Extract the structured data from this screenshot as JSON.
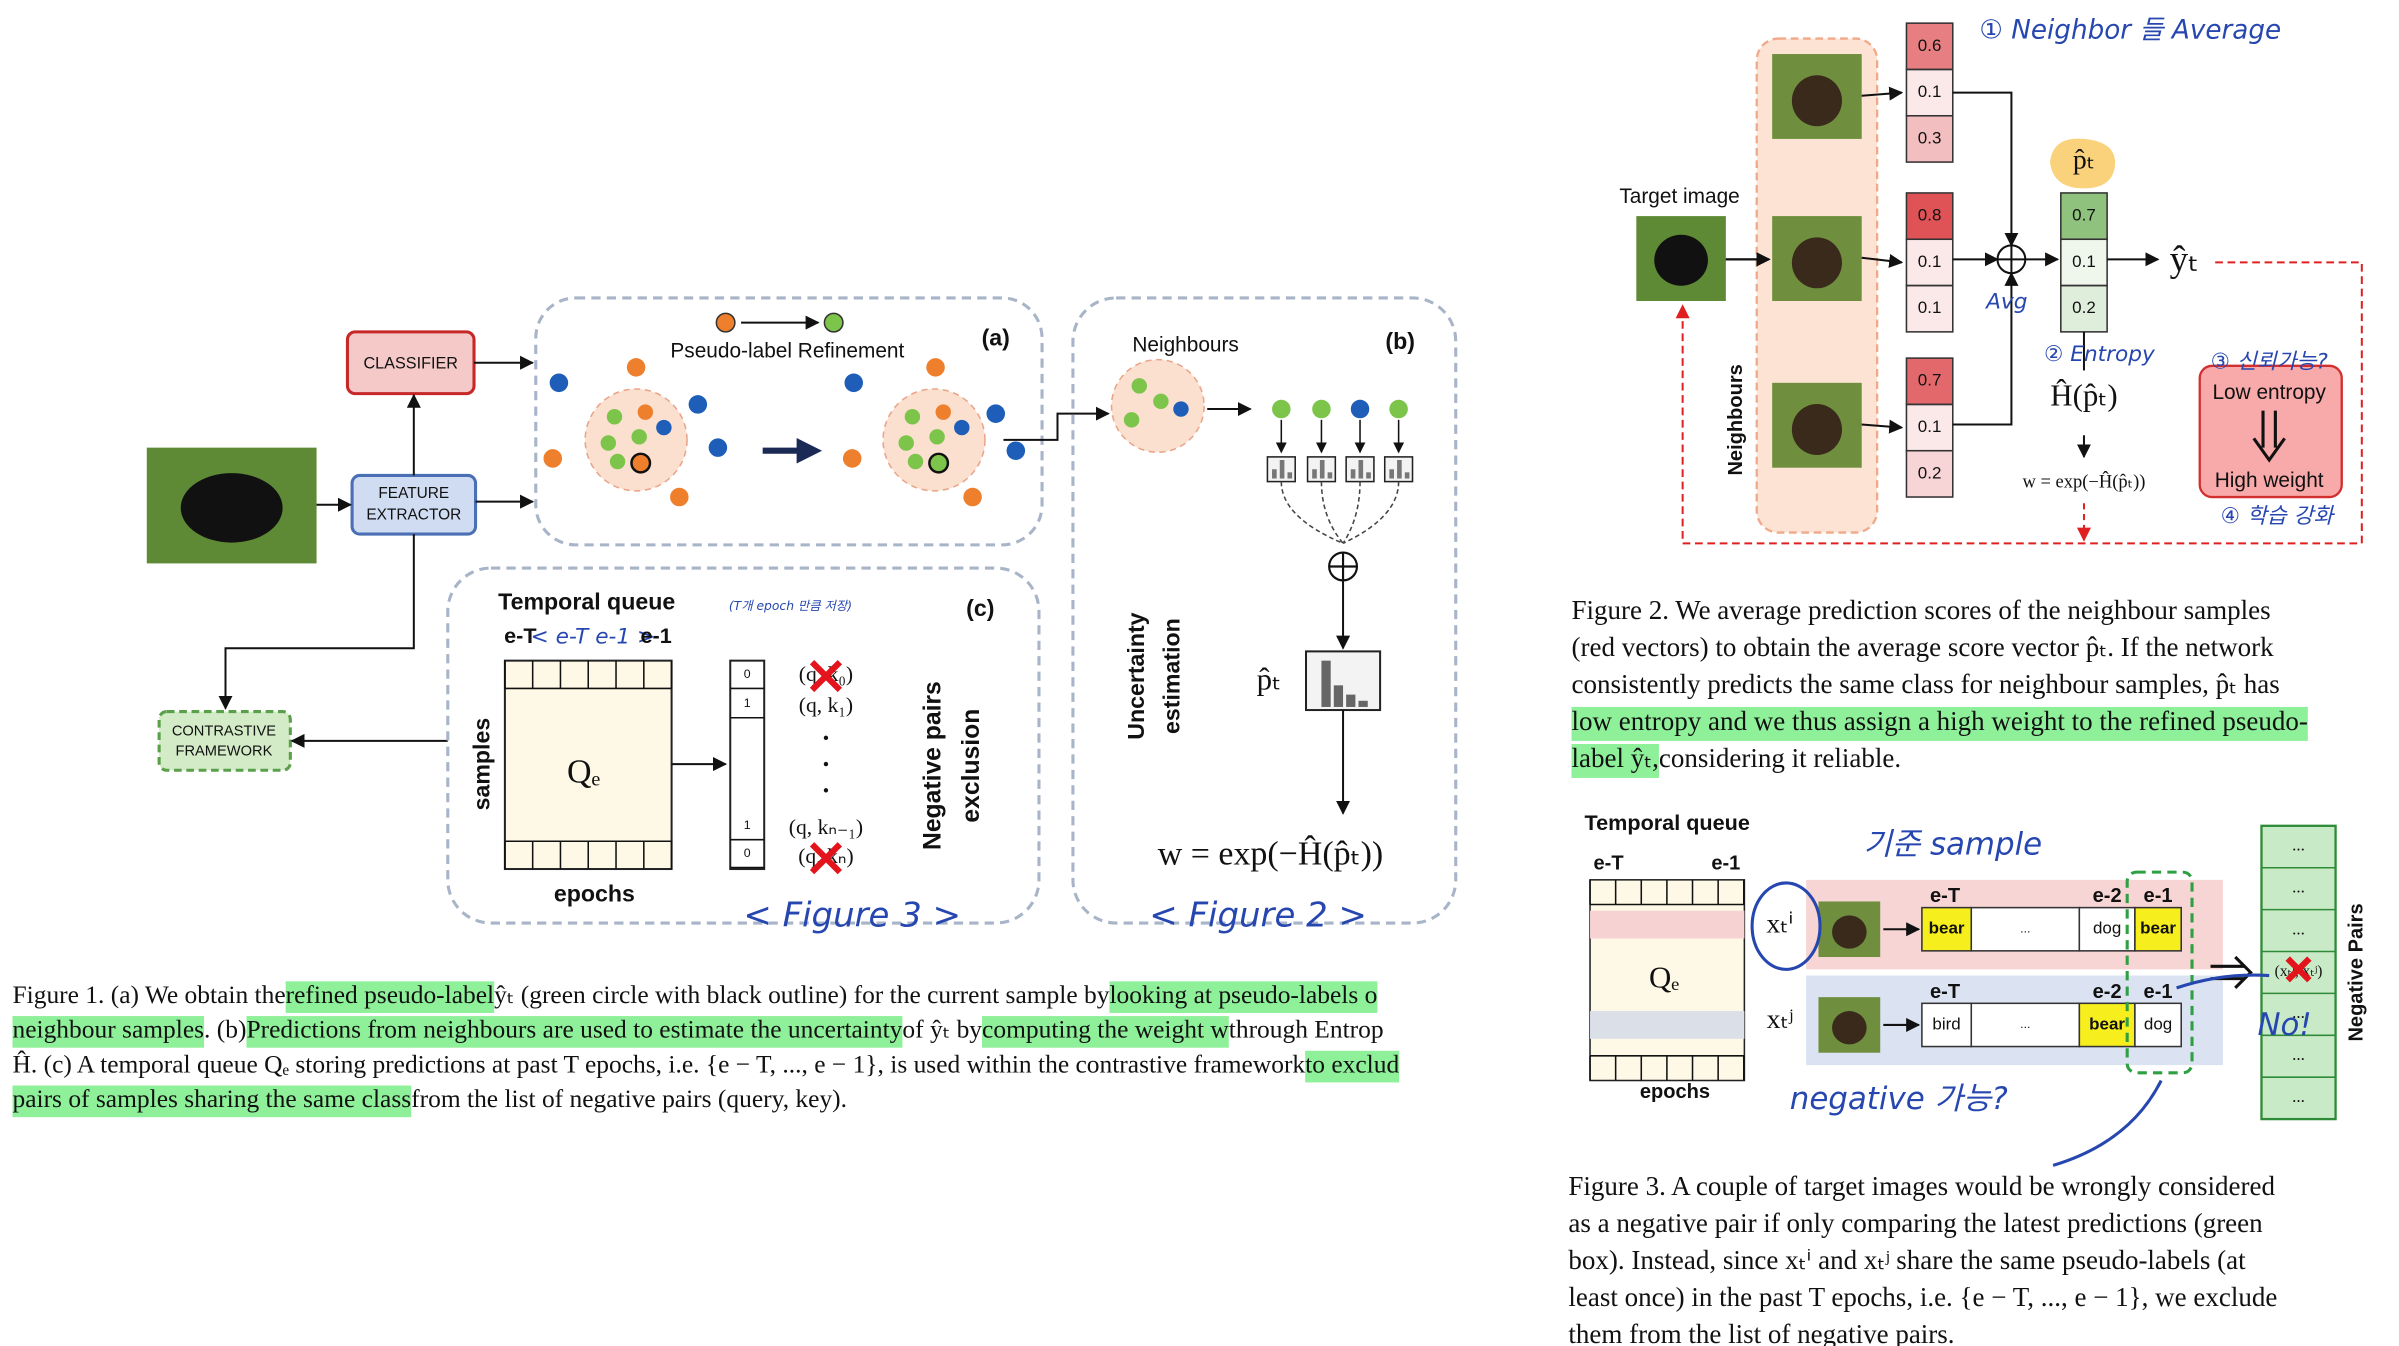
{
  "figure1": {
    "classifier": "CLASSIFIER",
    "feature_extractor": [
      "FEATURE",
      "EXTRACTOR"
    ],
    "contrastive": [
      "CONTRASTIVE",
      "FRAMEWORK"
    ],
    "panel_a": {
      "label": "(a)",
      "title": "Pseudo-label Refinement"
    },
    "panel_b": {
      "label": "(b)",
      "neighbours": "Neighbours",
      "uncertainty": [
        "Uncertainty",
        "estimation"
      ],
      "p_hat": "p̂ₜ",
      "formula": "w = exp(−Ĥ(p̂ₜ))"
    },
    "panel_c": {
      "label": "(c)",
      "title": "Temporal queue",
      "e_T": "e-T",
      "e_1": "e-1",
      "samples": "samples",
      "epochs": "epochs",
      "queue": "Qₑ",
      "vector": [
        0,
        1,
        1,
        0
      ],
      "pairs": [
        "(q, k₀)",
        "(q, k₁)",
        "(q, kₙ₋₁)",
        "(q, kₙ)"
      ],
      "exclusion": [
        "Negative pairs",
        "exclusion"
      ]
    },
    "annotations": {
      "epoch_note": "(T개 epoch 만큼 저장)",
      "range": "< e-T      e-1 >",
      "fig3": "< Figure 3 >",
      "fig2": "< Figure 2 >"
    },
    "caption": [
      [
        "Figure 1. (a) We obtain the ",
        {
          "text": "refined pseudo-label",
          "highlight": true
        },
        " ŷₜ (green circle with black outline) for the current sample by ",
        {
          "text": "looking at pseudo-labels o",
          "highlight": true
        }
      ],
      [
        {
          "text": "neighbour samples",
          "highlight": true
        },
        ". (b) ",
        {
          "text": "Predictions from neighbours are used to estimate the uncertainty",
          "highlight": true
        },
        " of ŷₜ by ",
        {
          "text": "computing the weight w",
          "highlight": true
        },
        " through Entrop"
      ],
      [
        "Ĥ. (c) A temporal queue Qₑ storing predictions at past T epochs, i.e. {e − T, ..., e − 1}, is used within the contrastive framework ",
        {
          "text": "to exclud",
          "highlight": true
        }
      ],
      [
        {
          "text": "pairs of samples sharing the same class",
          "highlight": true
        },
        " from the list of negative pairs (query, key)."
      ]
    ]
  },
  "figure2": {
    "target": "Target image",
    "neighbours": "Neighbours",
    "vectors": [
      [
        0.6,
        0.1,
        0.3
      ],
      [
        0.8,
        0.1,
        0.1
      ],
      [
        0.7,
        0.1,
        0.2
      ]
    ],
    "average": [
      0.7,
      0.1,
      0.2
    ],
    "p_hat": "p̂ₜ",
    "y_hat": "ŷₜ",
    "entropy": "Ĥ(p̂ₜ)",
    "formula": "w = exp(−Ĥ(p̂ₜ))",
    "low": "Low entropy",
    "high": "High weight",
    "annotations": {
      "step1": "① Neighbor 들 Average",
      "avg": "Avg",
      "step2": "② Entropy",
      "step3": "③ 신뢰가능?",
      "step4": "④ 학습 강화"
    },
    "caption": [
      [
        "Figure 2. We average prediction scores of the neighbour samples"
      ],
      [
        "(red vectors) to obtain the average score vector p̂ₜ. If the network"
      ],
      [
        "consistently predicts the same class for neighbour samples, p̂ₜ has"
      ],
      [
        {
          "text": "low entropy and we thus assign a high weight to the refined pseudo-",
          "highlight": true
        }
      ],
      [
        {
          "text": "label ŷₜ,",
          "highlight": true
        },
        " considering it reliable."
      ]
    ]
  },
  "figure3": {
    "title": "Temporal queue",
    "e_T": "e-T",
    "e_1": "e-1",
    "e_2": "e-2",
    "queue": "Qₑ",
    "epochs": "epochs",
    "rows": [
      {
        "sample": "xₜⁱ",
        "cells": [
          "bear",
          "...",
          "dog",
          "bear"
        ]
      },
      {
        "sample": "xₜʲ",
        "cells": [
          "bird",
          "...",
          "bear",
          "dog"
        ]
      }
    ],
    "negative": "Negative Pairs",
    "list": [
      "...",
      "...",
      "...",
      "(xₜⁱ, xₜʲ)",
      "...",
      "...",
      "..."
    ],
    "annotations": {
      "anchor": "기준 sample",
      "no": "No!",
      "maybe": "negative 가능?"
    },
    "caption": [
      [
        "Figure 3. A couple of target images would be wrongly considered"
      ],
      [
        "as a negative pair if only comparing the latest predictions (green"
      ],
      [
        "box). Instead, since xₜⁱ and xₜʲ share the same pseudo-labels (at"
      ],
      [
        "least once) in the past T epochs, i.e. {e − T, ..., e − 1}, we exclude"
      ],
      [
        "them from the list of negative pairs."
      ]
    ]
  }
}
